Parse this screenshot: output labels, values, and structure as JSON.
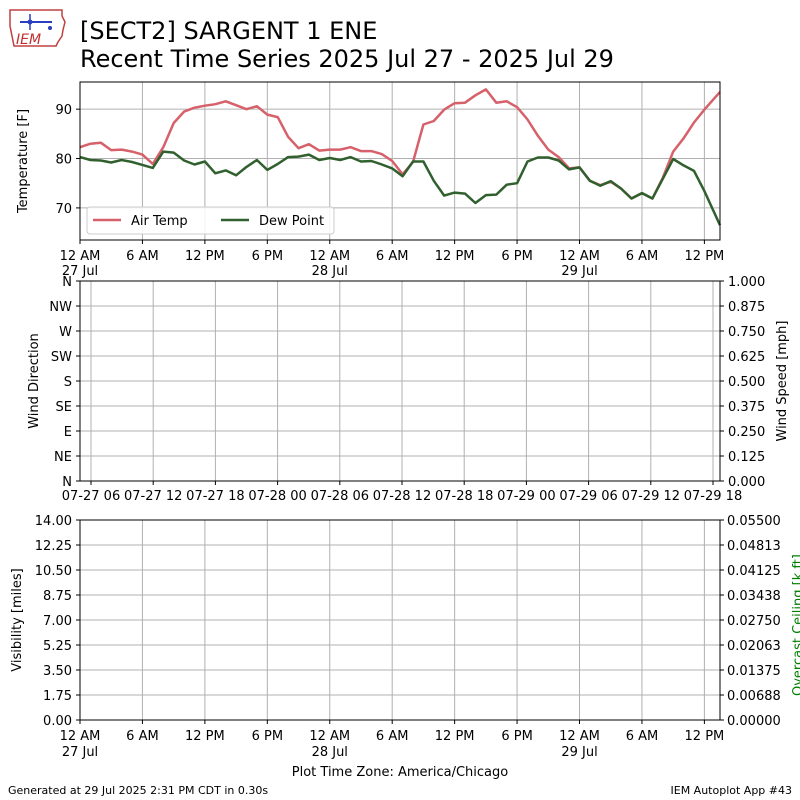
{
  "header": {
    "title_line1": "[SECT2] SARGENT 1 ENE",
    "title_line2": "Recent Time Series 2025 Jul 27 - 2025 Jul 29",
    "logo_text": "IEM"
  },
  "footer": {
    "generated": "Generated at 29 Jul 2025 2:31 PM CDT in 0.30s",
    "app": "IEM Autoplot App #43",
    "timezone_label": "Plot Time Zone: America/Chicago"
  },
  "colors": {
    "air_temp": "#d6616b",
    "dew_point": "#31602f",
    "ceiling_axis": "#008000",
    "grid": "#b0b0b0"
  },
  "chart_data": [
    {
      "type": "line",
      "ylabel": "Temperature [F]",
      "ylim": [
        63.5,
        95.5
      ],
      "yticks": [
        70,
        80,
        90
      ],
      "xlim_hours": [
        0,
        61.5
      ],
      "xticks": [
        {
          "h": 0,
          "l1": "12 AM",
          "l2": "27 Jul"
        },
        {
          "h": 6,
          "l1": "6 AM",
          "l2": ""
        },
        {
          "h": 12,
          "l1": "12 PM",
          "l2": ""
        },
        {
          "h": 18,
          "l1": "6 PM",
          "l2": ""
        },
        {
          "h": 24,
          "l1": "12 AM",
          "l2": "28 Jul"
        },
        {
          "h": 30,
          "l1": "6 AM",
          "l2": ""
        },
        {
          "h": 36,
          "l1": "12 PM",
          "l2": ""
        },
        {
          "h": 42,
          "l1": "6 PM",
          "l2": ""
        },
        {
          "h": 48,
          "l1": "12 AM",
          "l2": "29 Jul"
        },
        {
          "h": 54,
          "l1": "6 AM",
          "l2": ""
        },
        {
          "h": 60,
          "l1": "12 PM",
          "l2": ""
        }
      ],
      "legend": {
        "placement": "lower-left",
        "entries": [
          "Air Temp",
          "Dew Point"
        ]
      },
      "grid": true,
      "x_hours": [
        0,
        1,
        2,
        3,
        4,
        5,
        6,
        7,
        8,
        9,
        10,
        11,
        12,
        13,
        14,
        15,
        16,
        17,
        18,
        19,
        20,
        21,
        22,
        23,
        24,
        25,
        26,
        27,
        28,
        29,
        30,
        31,
        32,
        33,
        34,
        35,
        36,
        37,
        38,
        39,
        40,
        41,
        42,
        43,
        44,
        45,
        46,
        47,
        48,
        49,
        50,
        51,
        52,
        53,
        54,
        55,
        56,
        57,
        58,
        59,
        60,
        61.5
      ],
      "series": [
        {
          "name": "Air Temp",
          "values": [
            82.3,
            83.0,
            83.2,
            81.7,
            81.8,
            81.4,
            80.8,
            78.9,
            82.3,
            87.2,
            89.5,
            90.3,
            90.7,
            91.0,
            91.6,
            90.8,
            90.0,
            90.6,
            88.9,
            88.4,
            84.4,
            82.1,
            82.9,
            81.6,
            81.8,
            81.8,
            82.3,
            81.5,
            81.5,
            80.9,
            79.5,
            76.8,
            79.3,
            86.9,
            87.6,
            89.9,
            91.2,
            91.3,
            92.8,
            94.0,
            91.3,
            91.6,
            90.4,
            87.9,
            84.6,
            81.8,
            80.3,
            78.0,
            78.2,
            75.5,
            74.6,
            75.3,
            73.9,
            71.9,
            73.0,
            71.9,
            76.1,
            81.4,
            84.1,
            87.3,
            89.9,
            93.5
          ]
        },
        {
          "name": "Dew Point",
          "values": [
            80.3,
            79.7,
            79.6,
            79.2,
            79.7,
            79.3,
            78.7,
            78.1,
            81.4,
            81.2,
            79.6,
            78.8,
            79.4,
            77.0,
            77.6,
            76.6,
            78.3,
            79.7,
            77.7,
            78.9,
            80.3,
            80.4,
            80.8,
            79.7,
            80.1,
            79.7,
            80.3,
            79.4,
            79.5,
            78.8,
            78.0,
            76.4,
            79.4,
            79.4,
            75.5,
            72.5,
            73.1,
            72.9,
            71.0,
            72.6,
            72.7,
            74.7,
            75.0,
            79.4,
            80.2,
            80.2,
            79.6,
            77.8,
            78.2,
            75.5,
            74.5,
            75.4,
            73.9,
            71.9,
            73.0,
            71.9,
            75.9,
            79.9,
            78.6,
            77.5,
            73.4,
            66.5
          ]
        }
      ]
    },
    {
      "type": "line",
      "ylabel": "Wind Direction",
      "ylabel_right": "Wind Speed [mph]",
      "yticks_left": [
        "N",
        "NE",
        "E",
        "SE",
        "S",
        "SW",
        "W",
        "NW",
        "N"
      ],
      "yticks_right": [
        "0.000",
        "0.125",
        "0.250",
        "0.375",
        "0.500",
        "0.625",
        "0.750",
        "0.875",
        "1.000"
      ],
      "xticks": [
        "07-27 06",
        "07-27 12",
        "07-27 18",
        "07-28 00",
        "07-28 06",
        "07-28 12",
        "07-28 18",
        "07-29 00",
        "07-29 06",
        "07-29 12",
        "07-29 18"
      ],
      "grid": true,
      "series": []
    },
    {
      "type": "line",
      "ylabel": "Visibility [miles]",
      "ylabel_right": "Overcast Ceiling [k ft]",
      "yticks_left": [
        "0.00",
        "1.75",
        "3.50",
        "5.25",
        "7.00",
        "8.75",
        "10.50",
        "12.25",
        "14.00"
      ],
      "yticks_right": [
        "0.00000",
        "0.00688",
        "0.01375",
        "0.02063",
        "0.02750",
        "0.03438",
        "0.04125",
        "0.04813",
        "0.05500"
      ],
      "xticks": [
        {
          "l1": "12 AM",
          "l2": "27 Jul"
        },
        {
          "l1": "6 AM",
          "l2": ""
        },
        {
          "l1": "12 PM",
          "l2": ""
        },
        {
          "l1": "6 PM",
          "l2": ""
        },
        {
          "l1": "12 AM",
          "l2": "28 Jul"
        },
        {
          "l1": "6 AM",
          "l2": ""
        },
        {
          "l1": "12 PM",
          "l2": ""
        },
        {
          "l1": "6 PM",
          "l2": ""
        },
        {
          "l1": "12 AM",
          "l2": "29 Jul"
        },
        {
          "l1": "6 AM",
          "l2": ""
        },
        {
          "l1": "12 PM",
          "l2": ""
        }
      ],
      "grid": true,
      "series": []
    }
  ]
}
